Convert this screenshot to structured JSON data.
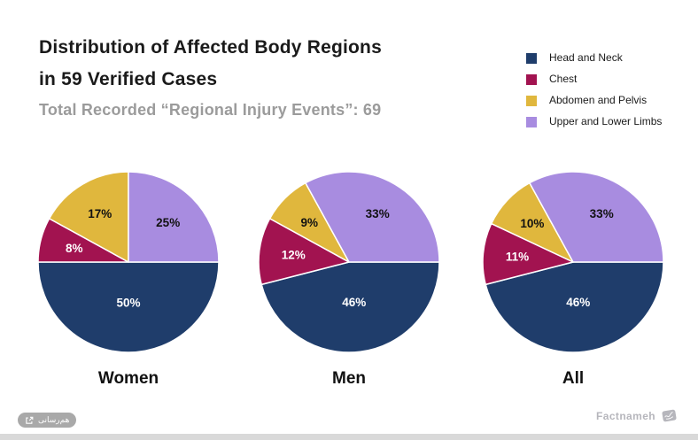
{
  "header": {
    "title_line1": "Distribution of Affected Body Regions",
    "title_line2": "in 59 Verified Cases",
    "subtitle": "Total Recorded “Regional Injury Events”: 69"
  },
  "legend": {
    "items": [
      {
        "label": "Head and Neck",
        "color": "#1f3d6b"
      },
      {
        "label": "Chest",
        "color": "#a21350"
      },
      {
        "label": "Abdomen and Pelvis",
        "color": "#e0b73d"
      },
      {
        "label": "Upper and Lower Limbs",
        "color": "#a88ce0"
      }
    ]
  },
  "chart_data": {
    "type": "pie",
    "title": "Distribution of Affected Body Regions in 59 Verified Cases",
    "subtitle": "Total Recorded “Regional Injury Events”: 69",
    "categories": [
      "Head and Neck",
      "Chest",
      "Abdomen and Pelvis",
      "Upper and Lower Limbs"
    ],
    "colors": [
      "#1f3d6b",
      "#a21350",
      "#e0b73d",
      "#a88ce0"
    ],
    "label_colors": [
      "#ffffff",
      "#ffffff",
      "#111111",
      "#111111"
    ],
    "value_suffix": "%",
    "start_angle_deg": 90,
    "direction": "clockwise",
    "legend_position": "top-right",
    "pies": [
      {
        "name": "Women",
        "values": [
          50,
          8,
          17,
          25
        ]
      },
      {
        "name": "Men",
        "values": [
          46,
          12,
          9,
          33
        ]
      },
      {
        "name": "All",
        "values": [
          46,
          11,
          10,
          33
        ]
      }
    ]
  },
  "footer": {
    "share_label": "هم‌رسانی",
    "brand": "Factnameh"
  },
  "style": {
    "slice_border": "#ffffff",
    "bottom_bar": "#d9d9d9",
    "pill_bg": "#a9a9a9",
    "brand_color": "#b6b6bc"
  }
}
